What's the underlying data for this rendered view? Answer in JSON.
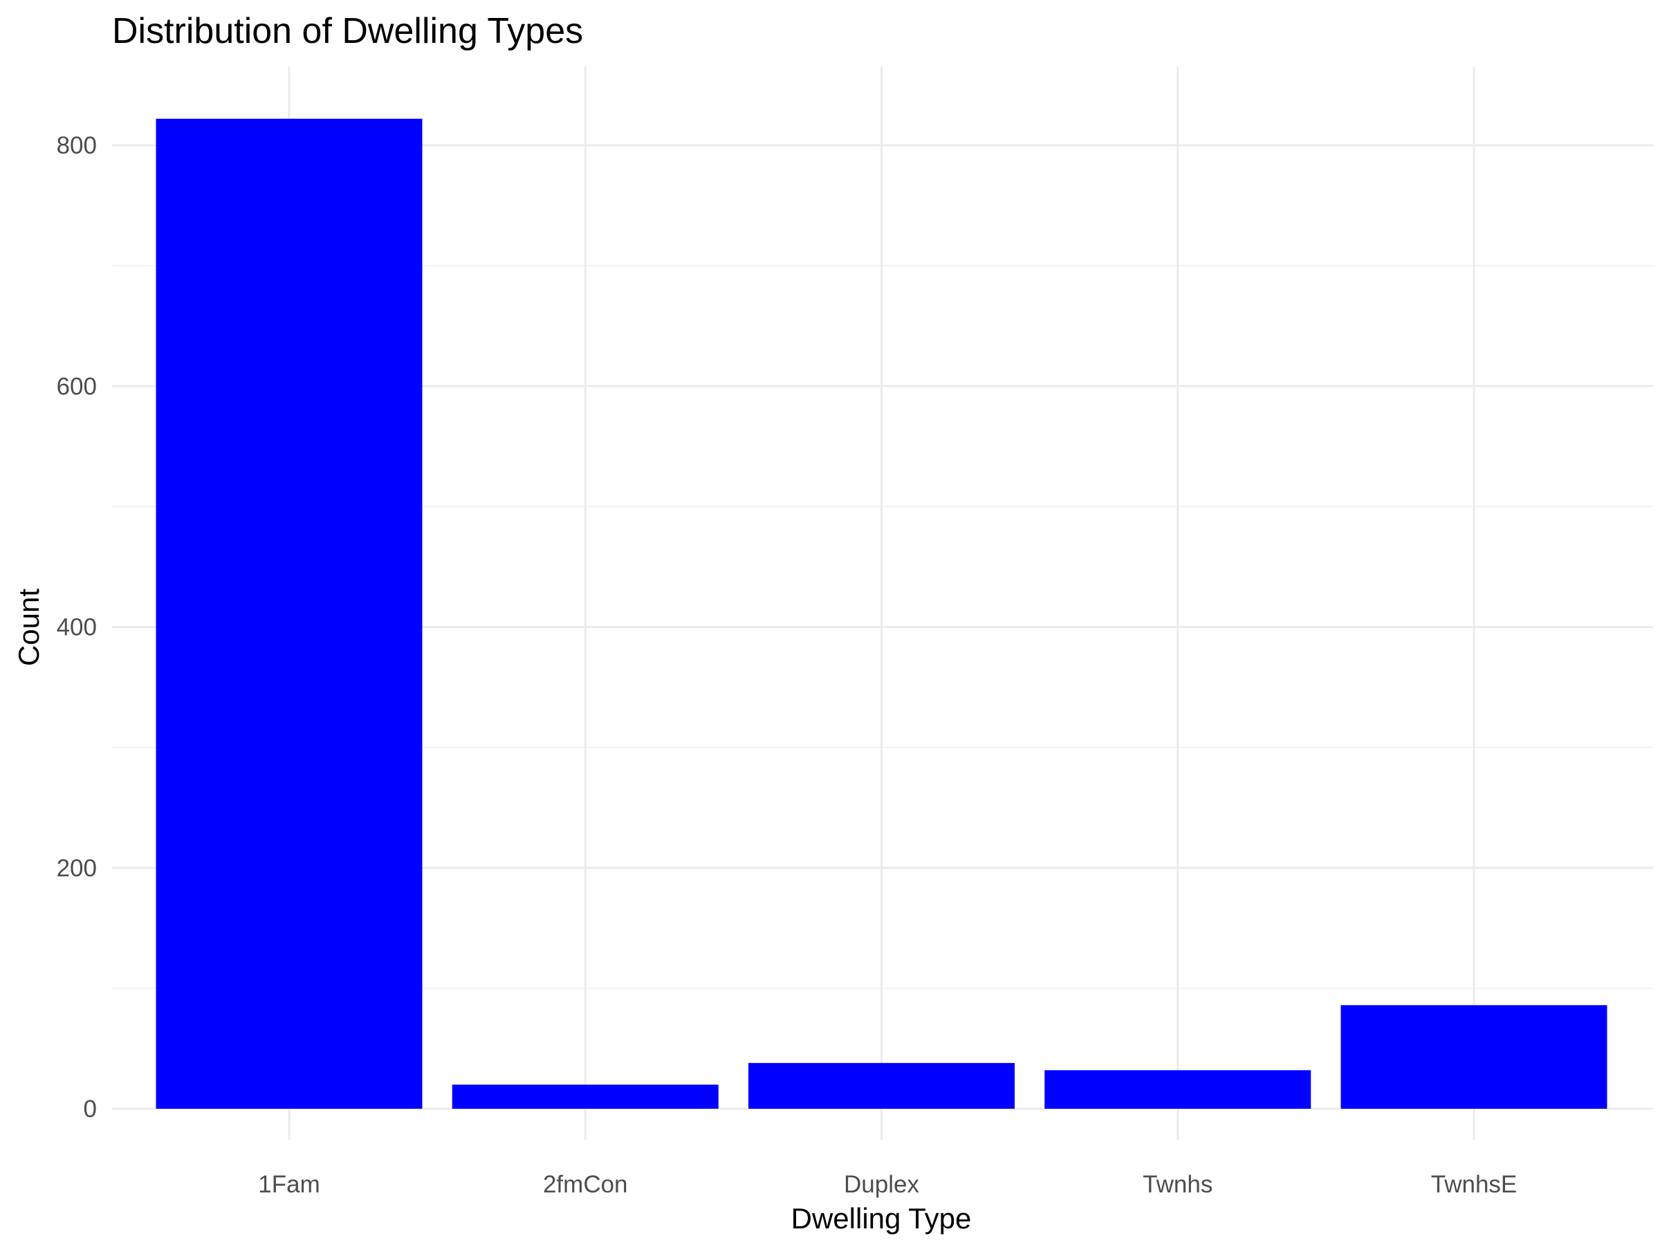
{
  "chart_data": {
    "type": "bar",
    "title": "Distribution of Dwelling Types",
    "xlabel": "Dwelling Type",
    "ylabel": "Count",
    "categories": [
      "1Fam",
      "2fmCon",
      "Duplex",
      "Twnhs",
      "TwnhsE"
    ],
    "values": [
      822,
      20,
      38,
      32,
      86
    ],
    "ylim": [
      0,
      860
    ],
    "yticks": [
      0,
      200,
      400,
      600,
      800
    ],
    "grid": true,
    "legend": "none",
    "colors": {
      "bar": "#0000ff",
      "grid_major": "#ebebeb",
      "grid_minor": "#f2f2f2",
      "tick_text": "#4d4d4d",
      "background": "#ffffff"
    }
  }
}
